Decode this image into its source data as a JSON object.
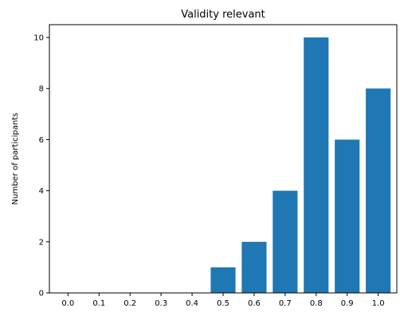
{
  "chart_data": {
    "type": "bar",
    "title": "Validity relevant",
    "xlabel": "",
    "ylabel": "Number of participants",
    "categories": [
      "0.0",
      "0.1",
      "0.2",
      "0.3",
      "0.4",
      "0.5",
      "0.6",
      "0.7",
      "0.8",
      "0.9",
      "1.0"
    ],
    "values": [
      0,
      0,
      0,
      0,
      0,
      1,
      2,
      4,
      10,
      6,
      8
    ],
    "yticks": [
      "0",
      "2",
      "4",
      "6",
      "8",
      "10"
    ],
    "ylim": [
      0,
      10.5
    ],
    "grid": false,
    "bar_color": "#1f77b4"
  }
}
